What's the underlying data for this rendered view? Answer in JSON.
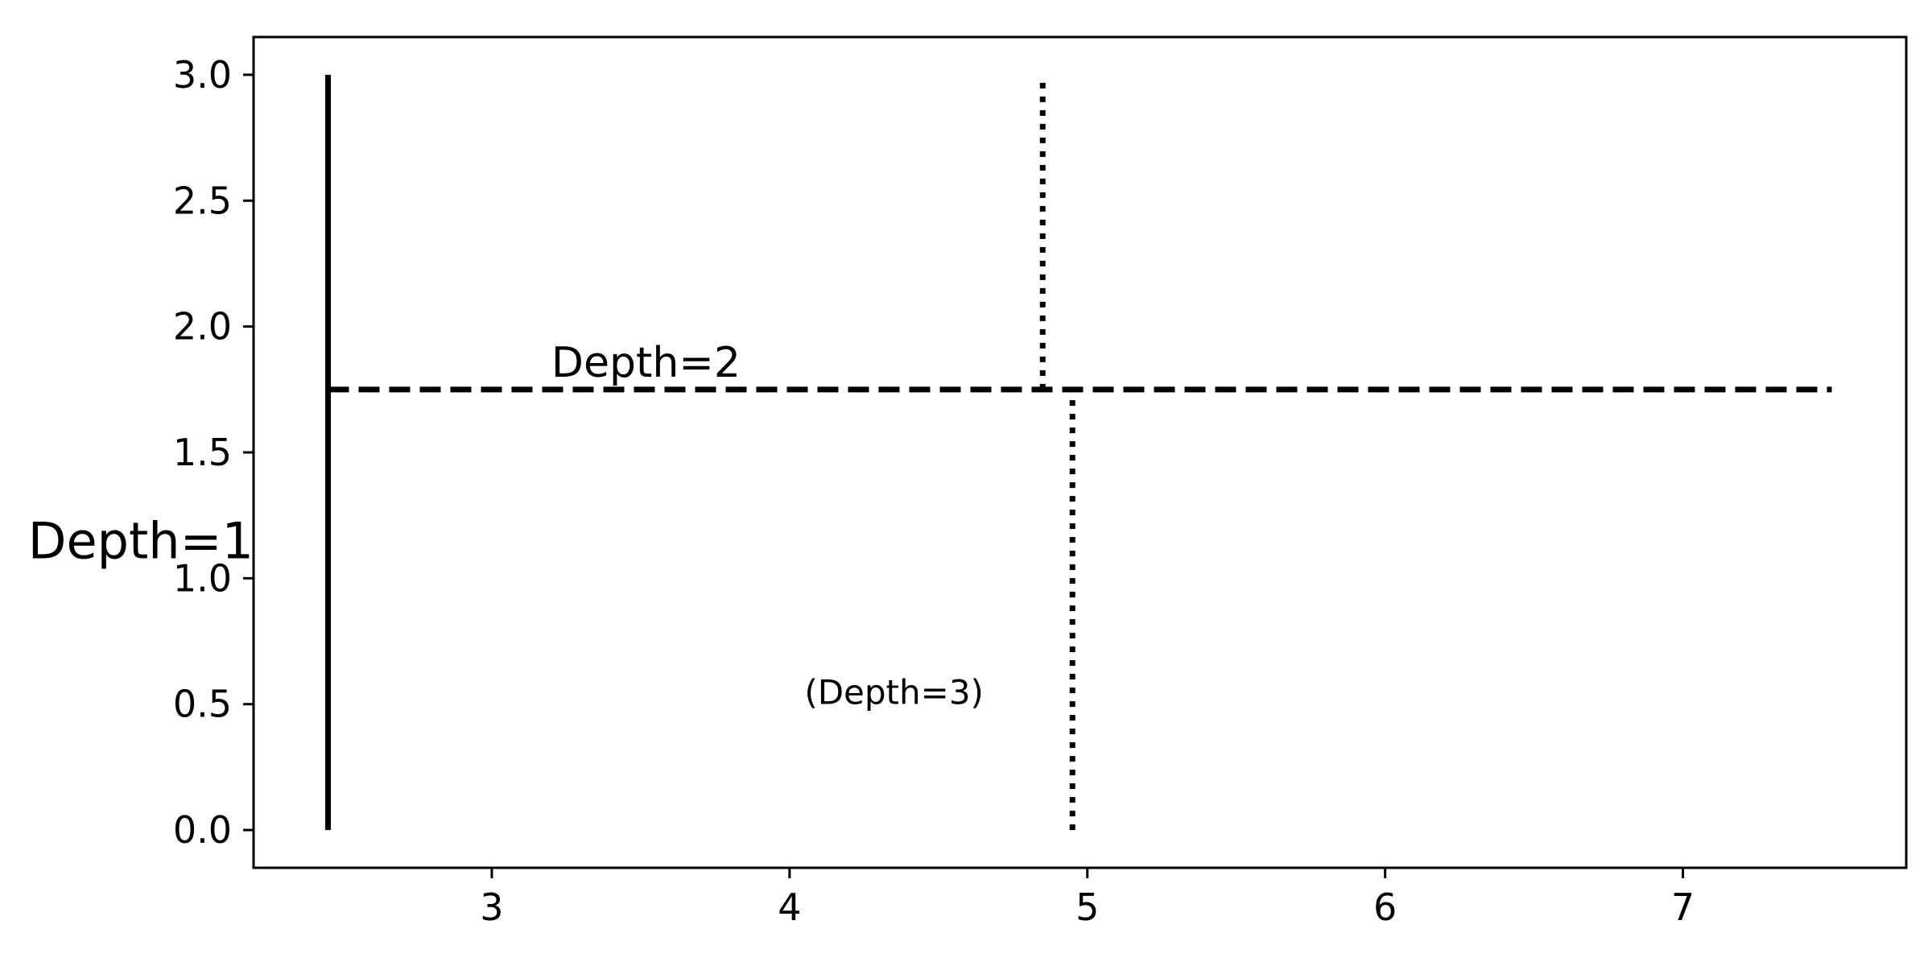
{
  "chart_data": {
    "type": "line",
    "title": "",
    "xlabel": "",
    "ylabel": "",
    "xlim": [
      2.2,
      7.75
    ],
    "ylim": [
      -0.15,
      3.15
    ],
    "grid": false,
    "xticks": [
      3,
      4,
      5,
      6,
      7
    ],
    "xtick_labels": [
      "3",
      "4",
      "5",
      "6",
      "7"
    ],
    "yticks": [
      0,
      0.5,
      1.0,
      1.5,
      2.0,
      2.5,
      3.0
    ],
    "ytick_labels": [
      "0.0",
      "0.5",
      "1.0",
      "1.5",
      "2.0",
      "2.5",
      "3.0"
    ],
    "series": [
      {
        "style": "solid",
        "color": "#000000",
        "x": [
          2.45,
          2.45
        ],
        "y": [
          0,
          3
        ]
      },
      {
        "style": "dashed",
        "color": "#000000",
        "x": [
          2.45,
          7.5
        ],
        "y": [
          1.75,
          1.75
        ]
      },
      {
        "style": "dotted",
        "color": "#000000",
        "x": [
          4.85,
          4.85
        ],
        "y": [
          1.75,
          3
        ]
      },
      {
        "style": "dotted",
        "color": "#000000",
        "x": [
          4.95,
          4.95
        ],
        "y": [
          0,
          1.75
        ]
      }
    ],
    "annotations": [
      {
        "text": "Depth=1",
        "x": 2.2,
        "y": 1.08,
        "size": "large",
        "anchor": "end"
      },
      {
        "text": "Depth=2",
        "x": 3.2,
        "y": 1.8,
        "size": "medium",
        "anchor": "start"
      },
      {
        "text": "(Depth=3)",
        "x": 4.05,
        "y": 0.5,
        "size": "small",
        "anchor": "start"
      }
    ]
  }
}
